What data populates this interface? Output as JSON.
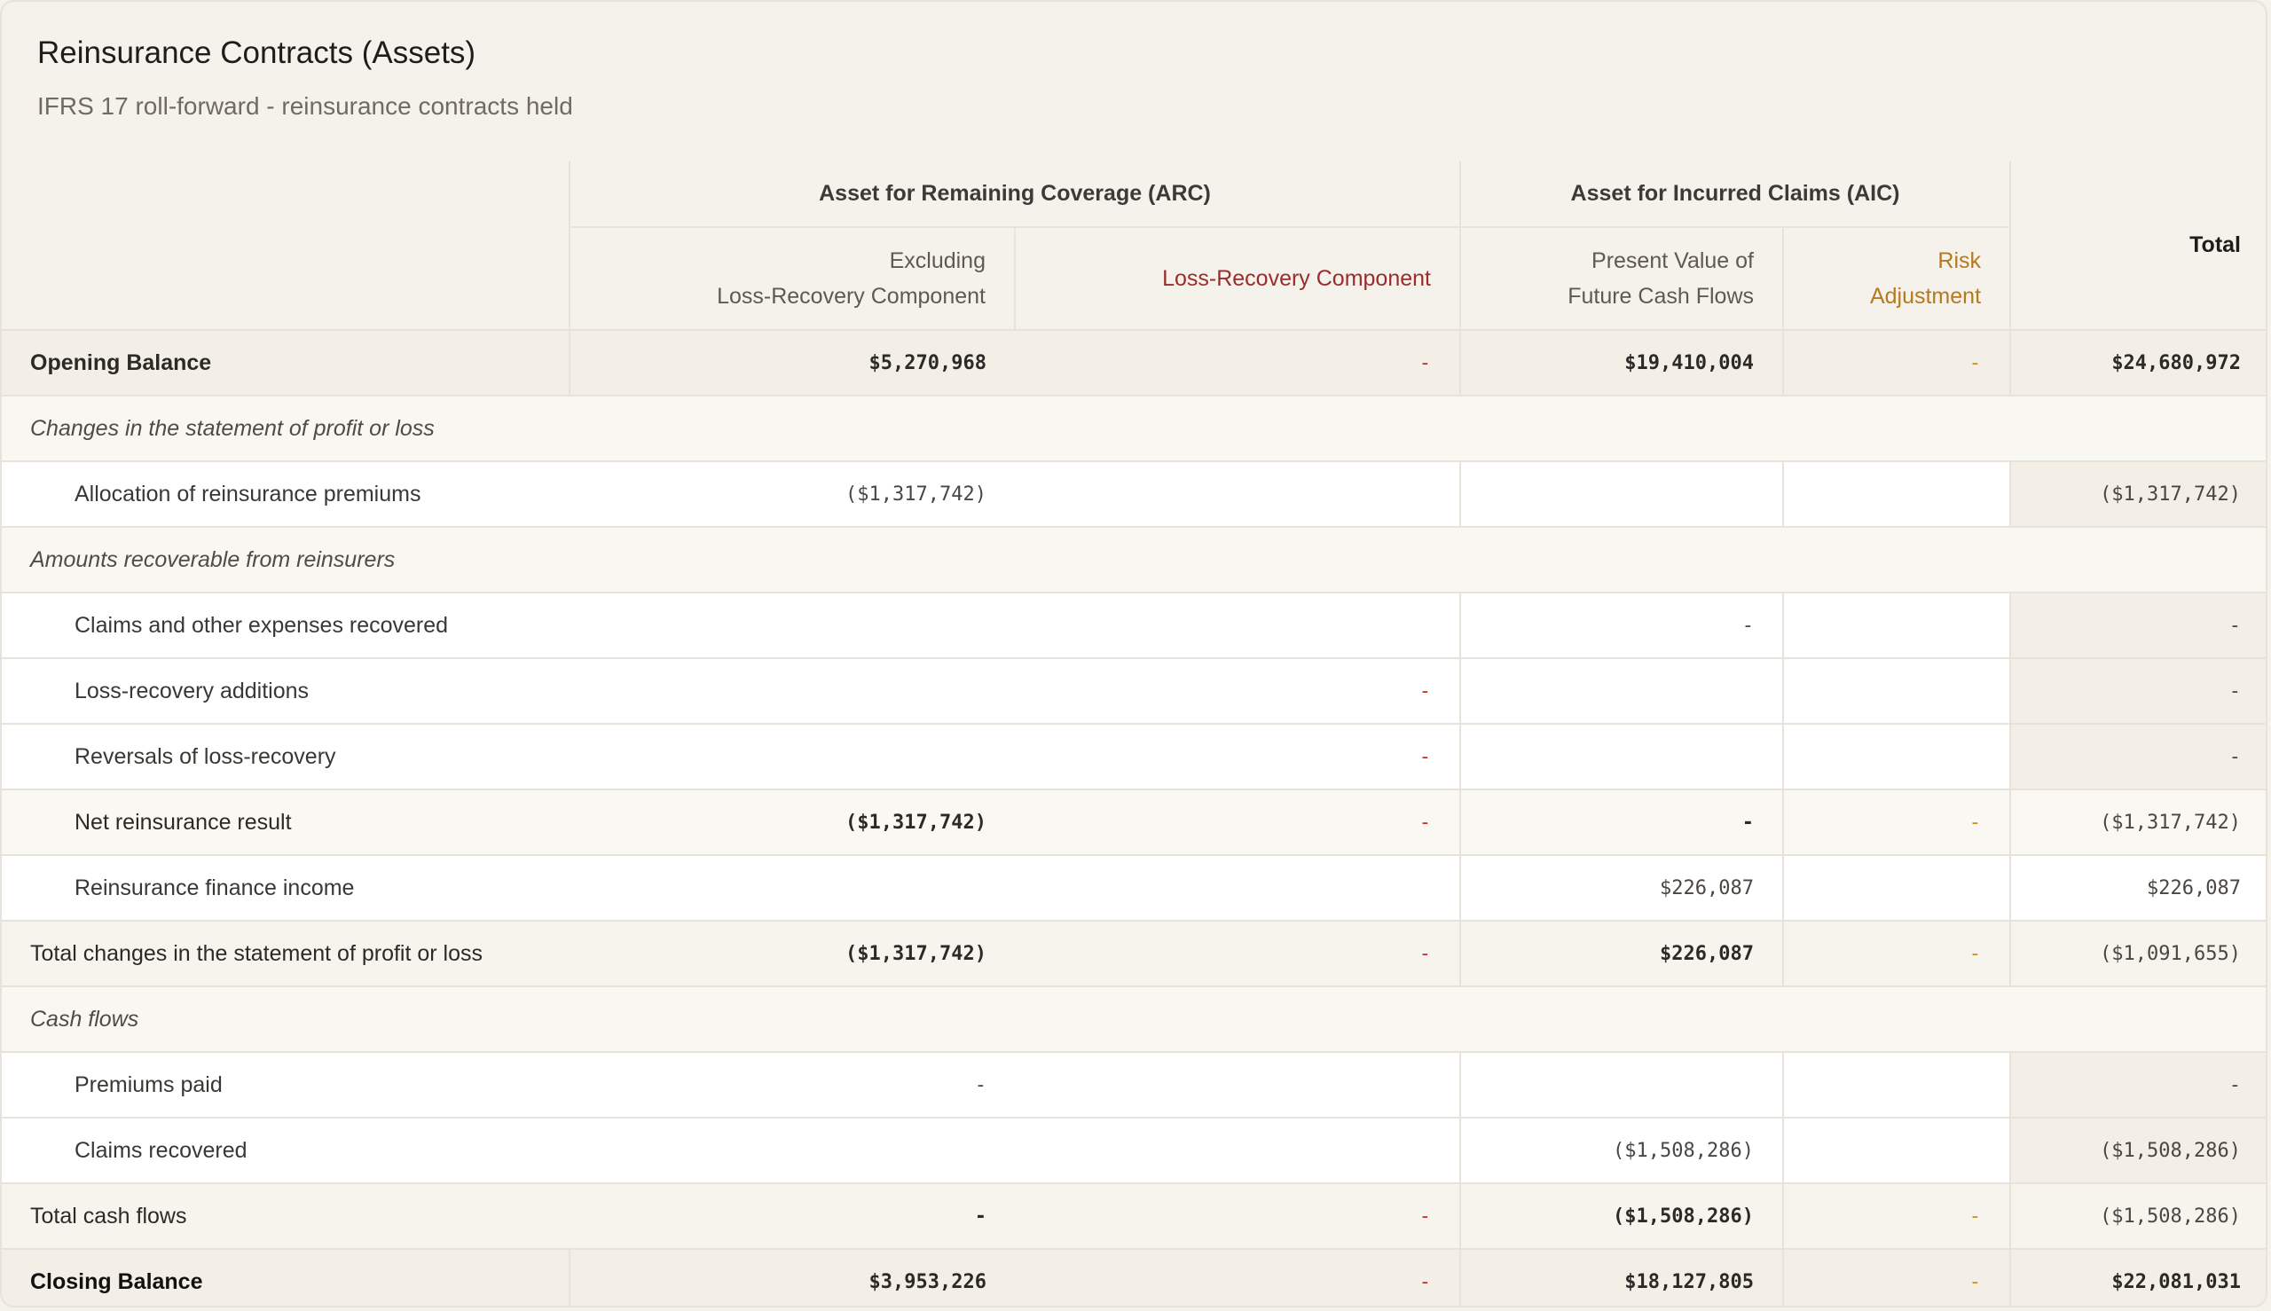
{
  "header": {
    "title": "Reinsurance Contracts (Assets)",
    "subtitle": "IFRS 17 roll-forward - reinsurance contracts held"
  },
  "columns": {
    "arc_group": "Asset for Remaining Coverage (ARC)",
    "aic_group": "Asset for Incurred Claims (AIC)",
    "total": "Total",
    "arc_excl_line1": "Excluding",
    "arc_excl_line2": "Loss-Recovery Component",
    "arc_lrc": "Loss-Recovery Component",
    "aic_pv_line1": "Present Value of",
    "aic_pv_line2": "Future Cash Flows",
    "aic_ra_line1": "Risk",
    "aic_ra_line2": "Adjustment"
  },
  "rows": {
    "opening": {
      "label": "Opening Balance",
      "arc_excl": "$5,270,968",
      "arc_lrc": "-",
      "aic_pv": "$19,410,004",
      "aic_ra": "-",
      "total": "$24,680,972"
    },
    "section_pl": {
      "label": "Changes in the statement of profit or loss"
    },
    "alloc": {
      "label": "Allocation of reinsurance premiums",
      "arc_excl": "($1,317,742)",
      "arc_lrc": "",
      "aic_pv": "",
      "aic_ra": "",
      "total": "($1,317,742)"
    },
    "section_recov": {
      "label": "Amounts recoverable from reinsurers"
    },
    "claims_recovered": {
      "label": "Claims and other expenses recovered",
      "arc_excl": "",
      "arc_lrc": "",
      "aic_pv": "-",
      "aic_ra": "",
      "total": "-"
    },
    "lr_additions": {
      "label": "Loss-recovery additions",
      "arc_excl": "",
      "arc_lrc": "-",
      "aic_pv": "",
      "aic_ra": "",
      "total": "-"
    },
    "lr_reversals": {
      "label": "Reversals of loss-recovery",
      "arc_excl": "",
      "arc_lrc": "-",
      "aic_pv": "",
      "aic_ra": "",
      "total": "-"
    },
    "net_result": {
      "label": "Net reinsurance result",
      "arc_excl": "($1,317,742)",
      "arc_lrc": "-",
      "aic_pv": "-",
      "aic_ra": "-",
      "total": "($1,317,742)"
    },
    "finance_income": {
      "label": "Reinsurance finance income",
      "arc_excl": "",
      "arc_lrc": "",
      "aic_pv": "$226,087",
      "aic_ra": "",
      "total": "$226,087"
    },
    "total_pl": {
      "label": "Total changes in the statement of profit or loss",
      "arc_excl": "($1,317,742)",
      "arc_lrc": "-",
      "aic_pv": "$226,087",
      "aic_ra": "-",
      "total": "($1,091,655)"
    },
    "section_cash": {
      "label": "Cash flows"
    },
    "premiums_paid": {
      "label": "Premiums paid",
      "arc_excl": "-",
      "arc_lrc": "",
      "aic_pv": "",
      "aic_ra": "",
      "total": "-"
    },
    "claims_rec_cash": {
      "label": "Claims recovered",
      "arc_excl": "",
      "arc_lrc": "",
      "aic_pv": "($1,508,286)",
      "aic_ra": "",
      "total": "($1,508,286)"
    },
    "total_cash": {
      "label": "Total cash flows",
      "arc_excl": "-",
      "arc_lrc": "-",
      "aic_pv": "($1,508,286)",
      "aic_ra": "-",
      "total": "($1,508,286)"
    },
    "closing": {
      "label": "Closing Balance",
      "arc_excl": "$3,953,226",
      "arc_lrc": "-",
      "aic_pv": "$18,127,805",
      "aic_ra": "-",
      "total": "$22,081,031"
    }
  },
  "colors": {
    "loss_recovery": "#b83232",
    "risk_adjustment": "#c98a2a",
    "background": "#f5f2ec"
  }
}
